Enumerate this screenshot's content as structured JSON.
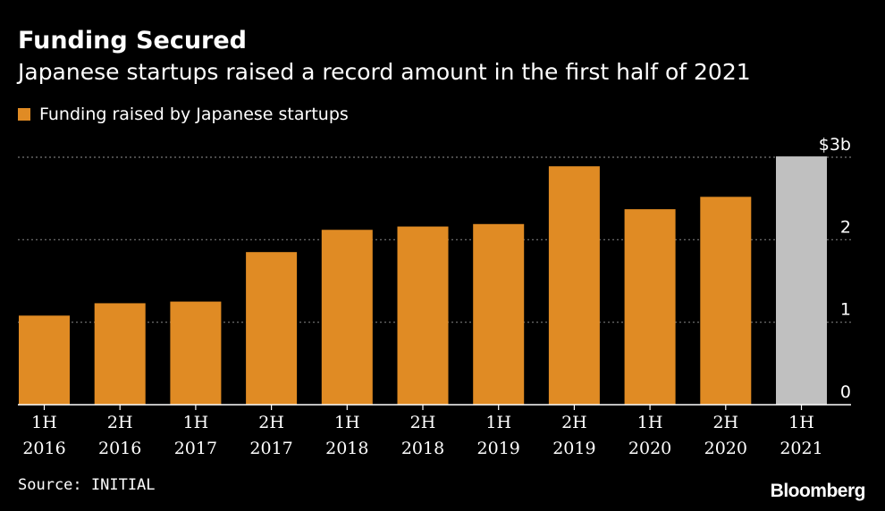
{
  "title": "Funding Secured",
  "subtitle": "Japanese startups raised a record amount in the first half of 2021",
  "legend": {
    "label": "Funding raised by Japanese startups",
    "color": "#e08b24"
  },
  "source": "Source: INITIAL",
  "logo": "Bloomberg",
  "chart_data": {
    "type": "bar",
    "categories": [
      [
        "1H",
        "2016"
      ],
      [
        "2H",
        "2016"
      ],
      [
        "1H",
        "2017"
      ],
      [
        "2H",
        "2017"
      ],
      [
        "1H",
        "2018"
      ],
      [
        "2H",
        "2018"
      ],
      [
        "1H",
        "2019"
      ],
      [
        "2H",
        "2019"
      ],
      [
        "1H",
        "2020"
      ],
      [
        "2H",
        "2020"
      ],
      [
        "1H",
        "2021"
      ]
    ],
    "series": [
      {
        "name": "Funding raised by Japanese startups",
        "values": [
          1.08,
          1.23,
          1.25,
          1.85,
          2.12,
          2.16,
          2.19,
          2.89,
          2.37,
          2.52,
          3.01
        ]
      }
    ],
    "bar_colors": [
      "#e08b24",
      "#e08b24",
      "#e08b24",
      "#e08b24",
      "#e08b24",
      "#e08b24",
      "#e08b24",
      "#e08b24",
      "#e08b24",
      "#e08b24",
      "#c0c0c0"
    ],
    "yticks": [
      {
        "value": 0,
        "label": "0"
      },
      {
        "value": 1,
        "label": "1"
      },
      {
        "value": 2,
        "label": "2"
      },
      {
        "value": 3,
        "label": "$3b"
      }
    ],
    "ylim": [
      0,
      3
    ],
    "grid": true,
    "gridline_color": "#777777",
    "axis_color": "#ffffff"
  }
}
